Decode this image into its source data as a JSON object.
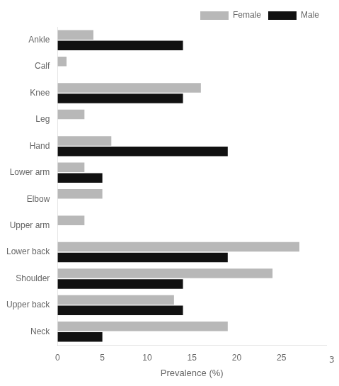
{
  "chart_data": {
    "type": "bar",
    "orientation": "horizontal",
    "categories": [
      "Ankle",
      "Calf",
      "Knee",
      "Leg",
      "Hand",
      "Lower arm",
      "Elbow",
      "Upper arm",
      "Lower back",
      "Shoulder",
      "Upper back",
      "Neck"
    ],
    "series": [
      {
        "name": "Female",
        "color": "#b8b8b8",
        "values": [
          4,
          1,
          16,
          3,
          6,
          3,
          5,
          3,
          27,
          24,
          13,
          19
        ]
      },
      {
        "name": "Male",
        "color": "#111111",
        "values": [
          14,
          0,
          14,
          0,
          19,
          5,
          0,
          0,
          19,
          14,
          14,
          5
        ]
      }
    ],
    "xlabel": "Prevalence (%)",
    "xlim": [
      0,
      30
    ],
    "xticks": [
      0,
      5,
      10,
      15,
      20,
      25
    ],
    "annotations": [
      "3"
    ],
    "grid": false,
    "legend": "upper right"
  }
}
